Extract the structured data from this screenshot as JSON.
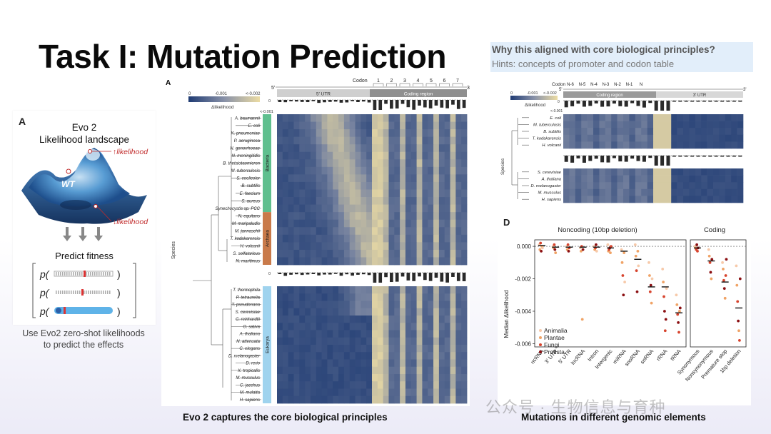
{
  "slide": {
    "title": "Task I: Mutation Prediction",
    "hint_question": "Why this aligned with core biological principles?",
    "hint_text": "Hints: concepts of promoter and codon table",
    "caption_left": "Evo 2 captures the core biological principles",
    "caption_right": "Mutations in different genomic elements",
    "watermark": "公众号 · 生物信息与育种"
  },
  "card": {
    "panel_label": "A",
    "heading1": "Evo 2",
    "heading2": "Likelihood landscape",
    "up_label": "↑likelihood",
    "down_label": "↓likelihood",
    "wt_label": "WT",
    "predict_label": "Predict fitness",
    "p_label": "p(",
    "close_paren": ")",
    "caption_line1": "Use Evo2 zero-shot likelihoods",
    "caption_line2": "to predict the effects"
  },
  "fig_main": {
    "panel_label": "A",
    "codon_label": "Codon",
    "codon_numbers": [
      "1",
      "2",
      "3",
      "4",
      "5",
      "6",
      "7"
    ],
    "five_prime": "5'",
    "three_prime": "3'",
    "region_utr": "5' UTR",
    "region_coding": "Coding region",
    "scale_min": "0",
    "scale_mid": "-0.001",
    "scale_max": "<-0.002",
    "delta_label": "Δlikelihood",
    "bar_zero": "0",
    "bar_min": "<-0.001",
    "species_axis": "Species",
    "groups": [
      {
        "name": "Bacteria",
        "color": "#5fbf8e"
      },
      {
        "name": "Archaea",
        "color": "#c97a4a"
      },
      {
        "name": "Eukarya",
        "color": "#9fd3ee"
      }
    ],
    "bacteria": [
      "A. baumannii",
      "E. coli",
      "K. pneumoniae",
      "P. aeruginosa",
      "N. gonorrhoeae",
      "N. meningitidis",
      "B. thetaiotaomicron",
      "M. tuberculosis",
      "S. coelicolor",
      "B. subtilis",
      "E. faecium",
      "S. aureus",
      "Synechocystis sp. PCC"
    ],
    "archaea": [
      "N. equitans",
      "M. maripaludis",
      "M. jannaschii",
      "T. kodakarensis",
      "H. volcanii",
      "S. solfataricus",
      "N. maritimus"
    ],
    "eukarya": [
      "T. thermophila",
      "P. tetraurelia",
      "T. pseudonana",
      "S. cerevisiae",
      "C. reinhardtii",
      "O. sativa",
      "A. thaliana",
      "N. attenuata",
      "C. elegans",
      "D. melanogaster",
      "D. rerio",
      "X. tropicalis",
      "M. musculus",
      "C. jacchus",
      "M. mulatta",
      "H. sapiens"
    ]
  },
  "fig_right": {
    "codon_label": "Codon",
    "codons": [
      "N-6",
      "N-5",
      "N-4",
      "N-3",
      "N-2",
      "N-1",
      "N"
    ],
    "five_prime": "5'",
    "three_prime": "3'",
    "region_coding": "Coding region",
    "region_utr": "3' UTR",
    "scale_min": "0",
    "scale_mid": "-0.001",
    "scale_max": "<-0.002",
    "delta_label": "Δlikelihood",
    "bar_zero": "0",
    "bar_min": "<-0.001",
    "species_axis": "Species",
    "top_species": [
      "E. coli",
      "M. tuberculosis",
      "B. subtilis",
      "T. kodakarensis",
      "H. volcanii"
    ],
    "bottom_species": [
      "S. cerevisiae",
      "A. thaliana",
      "D. melanogaster",
      "M. musculus",
      "H. sapiens"
    ]
  },
  "chart_data": {
    "type": "scatter",
    "panel_label": "D",
    "title_noncoding": "Noncoding (10bp deletion)",
    "title_coding": "Coding",
    "ylabel": "Median Δlikelihood",
    "ylim": [
      -0.0062,
      0.0004
    ],
    "yticks": [
      "0.000",
      "-0.002",
      "-0.004",
      "-0.006"
    ],
    "ytick_values": [
      0,
      -0.002,
      -0.004,
      -0.006
    ],
    "categories_noncoding": [
      "ncRNA",
      "3' UTR",
      "5' UTR",
      "lncRNA",
      "Intron",
      "Intergenic",
      "miRNA",
      "snoRNA",
      "snRNA",
      "rRNA",
      "tRNA"
    ],
    "categories_coding": [
      "Synonymous",
      "Nonsynonymous",
      "Premature stop",
      "1bp deletion"
    ],
    "legend": [
      {
        "name": "Animalia",
        "color": "#f7c9a9"
      },
      {
        "name": "Plantae",
        "color": "#f0a366"
      },
      {
        "name": "Fungi",
        "color": "#d7442e"
      },
      {
        "name": "Protista",
        "color": "#8b0f12"
      }
    ],
    "medians": [
      5e-05,
      -5e-05,
      -5e-05,
      -5e-05,
      -5e-05,
      -0.0001,
      -0.0003,
      -0.0008,
      -0.0025,
      -0.0025,
      -0.0041,
      -0.0001,
      -0.0009,
      -0.0022,
      -0.0038
    ],
    "points": [
      [
        [
          0.0001,
          0
        ],
        [
          -0.0002,
          1
        ],
        [
          0.0002,
          2
        ],
        [
          -0.0003,
          3
        ],
        [
          0.0,
          1
        ],
        [
          -0.0001,
          0
        ]
      ],
      [
        [
          0.0,
          0
        ],
        [
          -0.0001,
          1
        ],
        [
          0.0001,
          2
        ],
        [
          -0.0002,
          3
        ],
        [
          -0.0004,
          1
        ]
      ],
      [
        [
          0.0,
          0
        ],
        [
          -0.0002,
          1
        ],
        [
          0.0001,
          2
        ],
        [
          -0.0003,
          3
        ],
        [
          -0.0001,
          2
        ]
      ],
      [
        [
          -0.0001,
          0
        ],
        [
          -0.0003,
          1
        ],
        [
          0.0,
          2
        ],
        [
          -0.0045,
          1
        ],
        [
          -0.0002,
          3
        ]
      ],
      [
        [
          0.0,
          0
        ],
        [
          -0.0002,
          1
        ],
        [
          -0.0001,
          2
        ],
        [
          0.0001,
          3
        ],
        [
          -0.0003,
          0
        ]
      ],
      [
        [
          0.0001,
          0
        ],
        [
          -0.0003,
          1
        ],
        [
          -0.0002,
          2
        ],
        [
          -0.0001,
          3
        ],
        [
          -0.0004,
          1
        ],
        [
          0.0,
          2
        ]
      ],
      [
        [
          -0.0002,
          0
        ],
        [
          -0.001,
          1
        ],
        [
          -0.0018,
          2
        ],
        [
          -0.003,
          3
        ],
        [
          -0.0004,
          1
        ],
        [
          -0.0022,
          0
        ]
      ],
      [
        [
          0.0001,
          0
        ],
        [
          -0.0006,
          1
        ],
        [
          -0.0015,
          2
        ],
        [
          -0.0028,
          3
        ],
        [
          -0.0003,
          1
        ],
        [
          -0.0012,
          0
        ]
      ],
      [
        [
          -0.001,
          0
        ],
        [
          -0.0018,
          1
        ],
        [
          -0.0028,
          2
        ],
        [
          -0.0024,
          3
        ],
        [
          -0.0035,
          1
        ],
        [
          -0.002,
          0
        ]
      ],
      [
        [
          -0.0014,
          0
        ],
        [
          -0.0022,
          1
        ],
        [
          -0.0031,
          2
        ],
        [
          -0.004,
          3
        ],
        [
          -0.0052,
          2
        ],
        [
          -0.0045,
          3
        ],
        [
          -0.0026,
          0
        ]
      ],
      [
        [
          -0.003,
          0
        ],
        [
          -0.0036,
          1
        ],
        [
          -0.0042,
          2
        ],
        [
          -0.0047,
          3
        ],
        [
          -0.0053,
          2
        ],
        [
          -0.004,
          1
        ],
        [
          -0.0038,
          3
        ]
      ],
      [
        [
          0.0,
          0
        ],
        [
          -0.0001,
          1
        ],
        [
          -0.0002,
          2
        ],
        [
          0.0001,
          3
        ],
        [
          -0.0003,
          2
        ],
        [
          -0.0001,
          3
        ]
      ],
      [
        [
          -0.0002,
          0
        ],
        [
          -0.0006,
          1
        ],
        [
          -0.001,
          2
        ],
        [
          -0.0016,
          3
        ],
        [
          -0.002,
          1
        ],
        [
          -0.0008,
          3
        ]
      ],
      [
        [
          -0.001,
          0
        ],
        [
          -0.0014,
          1
        ],
        [
          -0.0021,
          2
        ],
        [
          -0.0026,
          3
        ],
        [
          -0.0032,
          1
        ],
        [
          -0.0018,
          2
        ],
        [
          -0.0008,
          3
        ]
      ],
      [
        [
          -0.0012,
          0
        ],
        [
          -0.0024,
          1
        ],
        [
          -0.0034,
          2
        ],
        [
          -0.0046,
          3
        ],
        [
          -0.0052,
          1
        ],
        [
          -0.0058,
          2
        ],
        [
          -0.002,
          3
        ]
      ]
    ]
  }
}
